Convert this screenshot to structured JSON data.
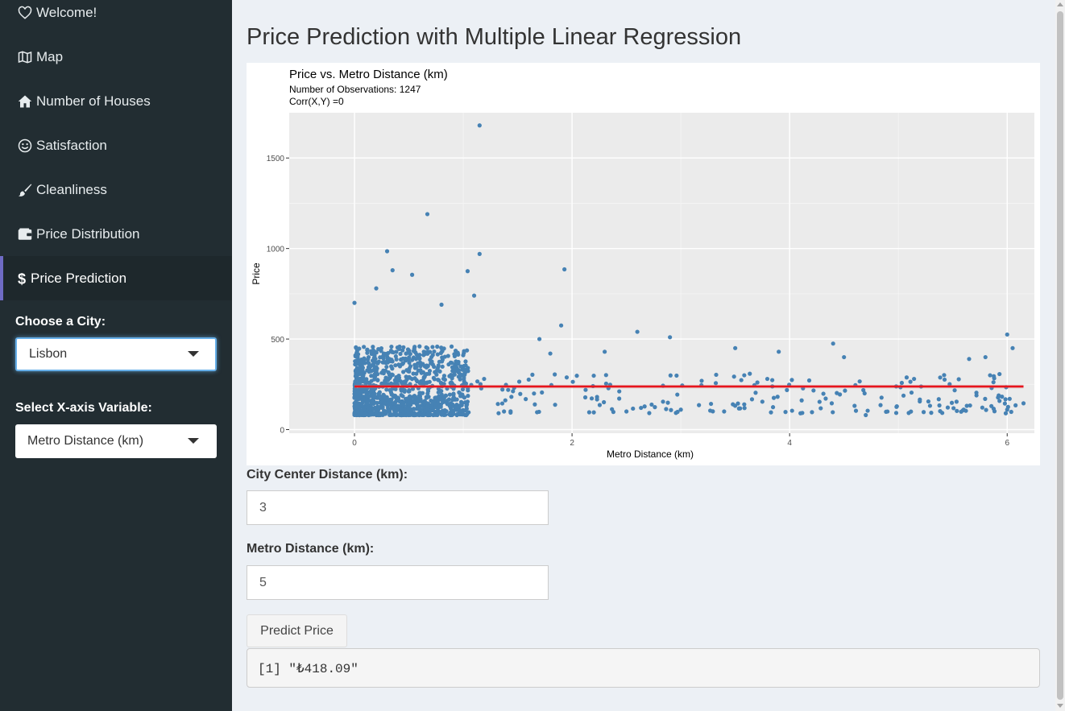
{
  "sidebar": {
    "items": [
      {
        "label": "Welcome!",
        "icon": "heart-icon"
      },
      {
        "label": "Map",
        "icon": "map-icon"
      },
      {
        "label": "Number of Houses",
        "icon": "home-icon"
      },
      {
        "label": "Satisfaction",
        "icon": "smile-icon"
      },
      {
        "label": "Cleanliness",
        "icon": "brush-icon"
      },
      {
        "label": "Price Distribution",
        "icon": "wallet-icon"
      },
      {
        "label": "Price Prediction",
        "icon": "dollar-icon",
        "active": true
      }
    ],
    "city_label": "Choose a City:",
    "city_value": "Lisbon",
    "xvar_label": "Select X-axis Variable:",
    "xvar_value": "Metro Distance (km)",
    "accent_color": "#6f6bc4"
  },
  "main": {
    "title": "Price Prediction with Multiple Linear Regression",
    "inputs": [
      {
        "label": "City Center Distance (km):",
        "value": "3"
      },
      {
        "label": "Metro Distance (km):",
        "value": "5"
      }
    ],
    "predict_button": "Predict Price",
    "output": "[1] \"₺418.09\""
  },
  "chart_data": {
    "type": "scatter",
    "title": "Price vs. Metro Distance (km)",
    "subtitle_1": "Number of Observations: 1247",
    "subtitle_2": "Corr(X,Y) =0",
    "xlabel": "Metro Distance (km)",
    "ylabel": "Price",
    "xlim": [
      -0.6,
      6.25
    ],
    "ylim": [
      -20,
      1750
    ],
    "x_ticks": [
      0,
      2,
      4,
      6
    ],
    "y_ticks": [
      0,
      500,
      1000,
      1500
    ],
    "grid": true,
    "point_color": "#4682b4",
    "regression_color": "#e8141c",
    "regression": {
      "x": [
        0,
        6.15
      ],
      "y": [
        238,
        238
      ]
    },
    "notable_points": [
      {
        "x": 1.15,
        "y": 1680
      },
      {
        "x": 0.67,
        "y": 1190
      },
      {
        "x": 0.3,
        "y": 985
      },
      {
        "x": 1.15,
        "y": 970
      },
      {
        "x": 1.93,
        "y": 885
      },
      {
        "x": 1.04,
        "y": 875
      },
      {
        "x": 0.53,
        "y": 855
      },
      {
        "x": 0.35,
        "y": 880
      },
      {
        "x": 0.2,
        "y": 780
      },
      {
        "x": 1.1,
        "y": 740
      },
      {
        "x": 0.0,
        "y": 700
      },
      {
        "x": 0.8,
        "y": 690
      },
      {
        "x": 1.9,
        "y": 575
      },
      {
        "x": 2.6,
        "y": 540
      },
      {
        "x": 2.9,
        "y": 510
      },
      {
        "x": 3.5,
        "y": 450
      },
      {
        "x": 3.9,
        "y": 430
      },
      {
        "x": 4.4,
        "y": 475
      },
      {
        "x": 6.0,
        "y": 525
      },
      {
        "x": 6.05,
        "y": 450
      },
      {
        "x": 5.8,
        "y": 400
      },
      {
        "x": 5.65,
        "y": 390
      },
      {
        "x": 4.5,
        "y": 400
      },
      {
        "x": 2.3,
        "y": 430
      },
      {
        "x": 1.7,
        "y": 500
      },
      {
        "x": 1.8,
        "y": 420
      },
      {
        "x": 6.0,
        "y": 110
      },
      {
        "x": 6.15,
        "y": 145
      },
      {
        "x": 5.6,
        "y": 110
      },
      {
        "x": 4.7,
        "y": 80
      },
      {
        "x": 2.2,
        "y": 95
      },
      {
        "x": 2.5,
        "y": 100
      },
      {
        "x": 3.0,
        "y": 110
      }
    ]
  }
}
